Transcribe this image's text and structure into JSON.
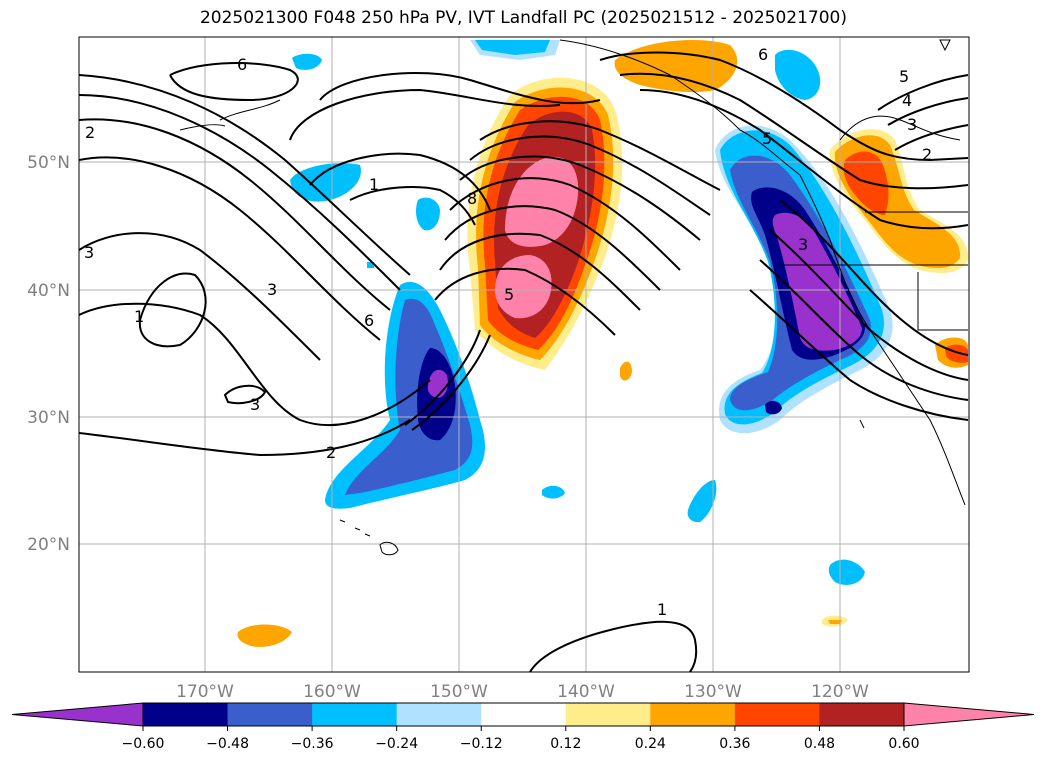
{
  "title": "2025021300 F048 250 hPa PV, IVT Landfall PC (2025021512 - 2025021700)",
  "map": {
    "lat_labels": [
      "50°N",
      "40°N",
      "30°N",
      "20°N"
    ],
    "lon_labels": [
      "170°W",
      "160°W",
      "150°W",
      "140°W",
      "130°W",
      "120°W"
    ],
    "contour_labels": [
      "1",
      "2",
      "3",
      "3",
      "3",
      "4",
      "5",
      "6",
      "6",
      "8",
      "5",
      "3",
      "2",
      "1",
      "1",
      "2",
      "5",
      "6",
      "3"
    ]
  },
  "colorbar": {
    "tick_labels": [
      "−0.60",
      "−0.48",
      "−0.36",
      "−0.24",
      "−0.12",
      "0.12",
      "0.24",
      "0.36",
      "0.48",
      "0.60"
    ],
    "colors": [
      "#9932cc",
      "#00008b",
      "#3a5fcd",
      "#00bfff",
      "#b0e2ff",
      "#ffffff",
      "#ffec8b",
      "#ffa500",
      "#ff4500",
      "#b22222",
      "#ff82ab"
    ]
  }
}
